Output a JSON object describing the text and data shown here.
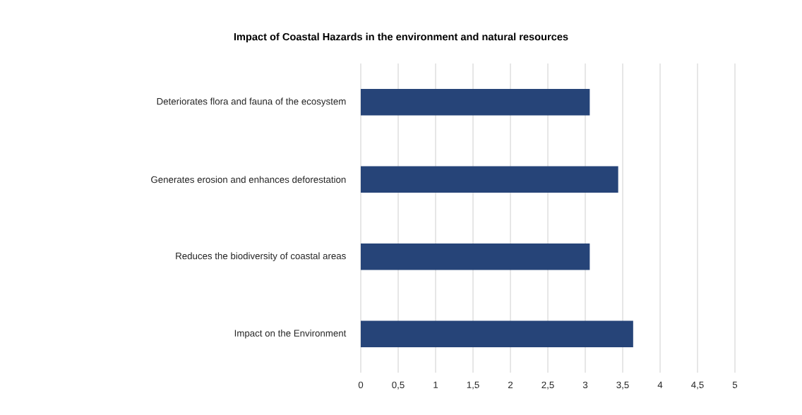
{
  "chart_data": {
    "type": "bar",
    "orientation": "horizontal",
    "title": "Impact of Coastal Hazards in the environment and natural resources",
    "categories": [
      "Deteriorates flora and fauna of the ecosystem",
      "Generates erosion and enhances deforestation",
      "Reduces the biodiversity of coastal areas",
      "Impact on the Environment"
    ],
    "values": [
      3.06,
      3.44,
      3.06,
      3.64
    ],
    "color": "#264478",
    "xlim": [
      0,
      5
    ],
    "xticks": [
      0,
      {
        "value": 0.5,
        "label": "0,5"
      },
      1,
      {
        "value": 1.5,
        "label": "1,5"
      },
      2,
      {
        "value": 2.5,
        "label": "2,5"
      },
      3,
      {
        "value": 3.5,
        "label": "3,5"
      },
      4,
      {
        "value": 4.5,
        "label": "4,5"
      },
      5
    ],
    "grid": "x"
  }
}
